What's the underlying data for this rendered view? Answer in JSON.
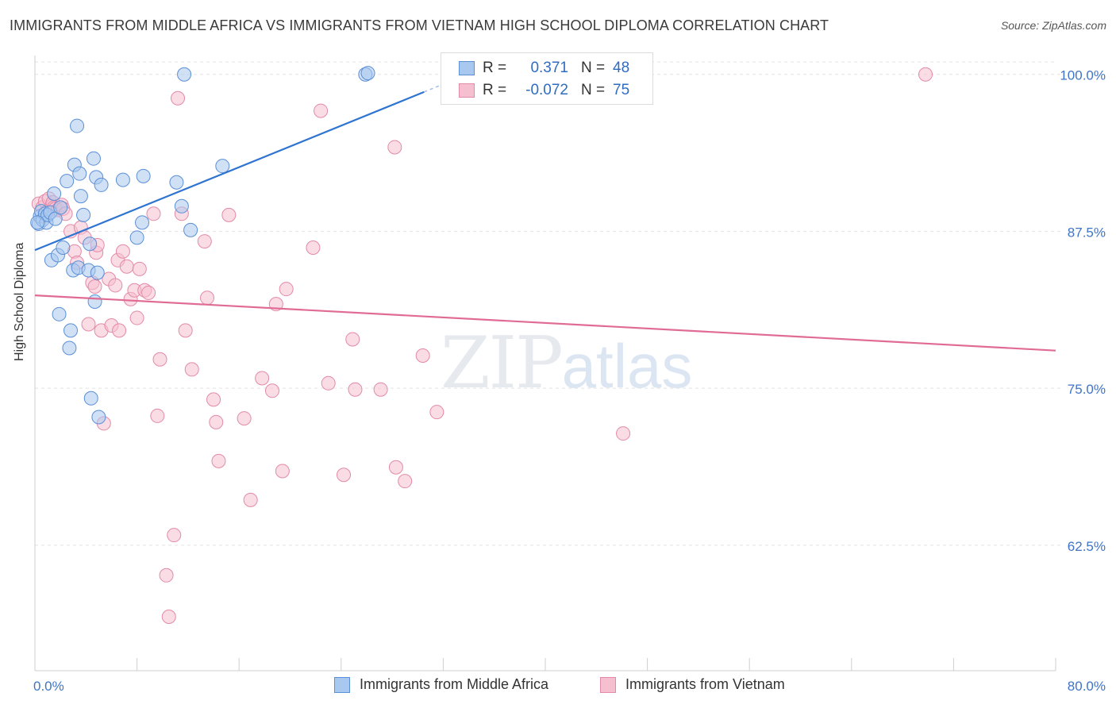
{
  "title": "IMMIGRANTS FROM MIDDLE AFRICA VS IMMIGRANTS FROM VIETNAM HIGH SCHOOL DIPLOMA CORRELATION CHART",
  "source": "Source: ZipAtlas.com",
  "watermark": {
    "zip": "ZIP",
    "atlas": "atlas"
  },
  "legend": {
    "rows": [
      {
        "r_label": "R =",
        "r_value": "0.371",
        "n_label": "N =",
        "n_value": "48"
      },
      {
        "r_label": "R =",
        "r_value": "-0.072",
        "n_label": "N =",
        "n_value": "75"
      }
    ]
  },
  "bottom_legend": [
    "Immigrants from Middle Africa",
    "Immigrants from Vietnam"
  ],
  "colors": {
    "blue_fill": "#a9c8ef",
    "blue_stroke": "#5b8fd6",
    "blue_line": "#2f74d0",
    "pink_fill": "#f6bfd0",
    "pink_stroke": "#e38aa8",
    "pink_line": "#e06b95",
    "tick_label": "#3f74c6",
    "grid": "#e3e3e3"
  },
  "chart_data": {
    "type": "scatter",
    "title": "IMMIGRANTS FROM MIDDLE AFRICA VS IMMIGRANTS FROM VIETNAM HIGH SCHOOL DIPLOMA CORRELATION CHART",
    "xlabel": "",
    "ylabel": "High School Diploma",
    "xlim": [
      0,
      80
    ],
    "ylim": [
      52.5,
      101.5
    ],
    "x_tick_labels": [
      "0.0%",
      "80.0%"
    ],
    "y_ticks": [
      62.5,
      75.0,
      87.5,
      100.0
    ],
    "y_tick_labels": [
      "62.5%",
      "75.0%",
      "87.5%",
      "100.0%"
    ],
    "grid": true,
    "series": [
      {
        "name": "Immigrants from Middle Africa",
        "points": [
          [
            0.3,
            88.1
          ],
          [
            0.4,
            88.7
          ],
          [
            0.5,
            89.1
          ],
          [
            0.6,
            88.4
          ],
          [
            0.8,
            88.9
          ],
          [
            0.9,
            88.2
          ],
          [
            1.0,
            88.8
          ],
          [
            1.2,
            89.0
          ],
          [
            1.3,
            85.2
          ],
          [
            1.5,
            90.5
          ],
          [
            1.6,
            88.5
          ],
          [
            1.8,
            85.6
          ],
          [
            1.9,
            80.9
          ],
          [
            2.0,
            89.4
          ],
          [
            2.2,
            86.2
          ],
          [
            2.5,
            91.5
          ],
          [
            2.7,
            78.2
          ],
          [
            2.8,
            79.6
          ],
          [
            3.0,
            84.4
          ],
          [
            3.1,
            92.8
          ],
          [
            3.3,
            95.9
          ],
          [
            3.4,
            84.6
          ],
          [
            3.5,
            92.1
          ],
          [
            3.6,
            90.3
          ],
          [
            3.8,
            88.8
          ],
          [
            4.2,
            84.4
          ],
          [
            4.3,
            86.5
          ],
          [
            4.4,
            74.2
          ],
          [
            4.6,
            93.3
          ],
          [
            4.7,
            81.9
          ],
          [
            4.8,
            91.8
          ],
          [
            4.9,
            84.2
          ],
          [
            5.0,
            72.7
          ],
          [
            5.2,
            91.2
          ],
          [
            6.9,
            91.6
          ],
          [
            8.0,
            87.0
          ],
          [
            8.4,
            88.2
          ],
          [
            8.5,
            91.9
          ],
          [
            11.1,
            91.4
          ],
          [
            11.5,
            89.5
          ],
          [
            11.7,
            100.0
          ],
          [
            12.2,
            87.6
          ],
          [
            14.7,
            92.7
          ],
          [
            25.9,
            100.0
          ],
          [
            26.1,
            100.1
          ],
          [
            33.0,
            100.1
          ],
          [
            44.2,
            100.0
          ],
          [
            0.2,
            88.2
          ]
        ]
      },
      {
        "name": "Immigrants from Vietnam",
        "points": [
          [
            0.3,
            89.7
          ],
          [
            0.6,
            89.4
          ],
          [
            0.8,
            89.9
          ],
          [
            1.0,
            89.1
          ],
          [
            1.1,
            90.1
          ],
          [
            1.3,
            89.5
          ],
          [
            1.4,
            89.8
          ],
          [
            1.5,
            89.4
          ],
          [
            1.6,
            89.3
          ],
          [
            1.8,
            89.2
          ],
          [
            2.1,
            89.6
          ],
          [
            2.2,
            89.3
          ],
          [
            2.4,
            88.9
          ],
          [
            2.8,
            87.5
          ],
          [
            3.1,
            85.9
          ],
          [
            3.3,
            85.0
          ],
          [
            3.6,
            87.8
          ],
          [
            3.9,
            87.0
          ],
          [
            4.2,
            80.1
          ],
          [
            4.5,
            83.4
          ],
          [
            4.7,
            83.1
          ],
          [
            4.8,
            85.8
          ],
          [
            4.9,
            86.4
          ],
          [
            5.2,
            79.6
          ],
          [
            5.4,
            72.2
          ],
          [
            5.8,
            83.7
          ],
          [
            6.0,
            80.0
          ],
          [
            6.3,
            83.2
          ],
          [
            6.5,
            85.2
          ],
          [
            6.6,
            79.6
          ],
          [
            6.9,
            85.9
          ],
          [
            7.2,
            84.7
          ],
          [
            7.5,
            82.1
          ],
          [
            7.8,
            82.8
          ],
          [
            8.0,
            80.6
          ],
          [
            8.2,
            84.5
          ],
          [
            8.6,
            82.8
          ],
          [
            8.9,
            82.6
          ],
          [
            9.3,
            88.9
          ],
          [
            9.6,
            72.8
          ],
          [
            9.8,
            77.3
          ],
          [
            10.3,
            60.1
          ],
          [
            10.5,
            56.8
          ],
          [
            10.9,
            63.3
          ],
          [
            11.2,
            98.1
          ],
          [
            11.5,
            88.9
          ],
          [
            11.8,
            79.6
          ],
          [
            12.3,
            76.5
          ],
          [
            13.3,
            86.7
          ],
          [
            13.5,
            82.2
          ],
          [
            14.0,
            74.1
          ],
          [
            14.2,
            72.3
          ],
          [
            14.4,
            69.2
          ],
          [
            15.2,
            88.8
          ],
          [
            16.4,
            72.6
          ],
          [
            16.9,
            66.1
          ],
          [
            17.8,
            75.8
          ],
          [
            18.6,
            74.8
          ],
          [
            18.9,
            81.7
          ],
          [
            19.4,
            68.4
          ],
          [
            19.7,
            82.9
          ],
          [
            21.8,
            86.2
          ],
          [
            22.4,
            97.1
          ],
          [
            23.0,
            75.4
          ],
          [
            24.2,
            68.1
          ],
          [
            24.9,
            78.9
          ],
          [
            25.1,
            74.9
          ],
          [
            27.1,
            74.9
          ],
          [
            28.2,
            94.2
          ],
          [
            28.3,
            68.7
          ],
          [
            29.0,
            67.6
          ],
          [
            30.4,
            77.6
          ],
          [
            31.5,
            73.1
          ],
          [
            46.1,
            71.4
          ],
          [
            69.8,
            100.0
          ]
        ]
      }
    ],
    "trendlines": [
      {
        "series": "Immigrants from Middle Africa",
        "x": [
          0,
          30.5
        ],
        "y": [
          86.0,
          98.6
        ],
        "dashed_extension_to_x": 33.0
      },
      {
        "series": "Immigrants from Vietnam",
        "x": [
          0,
          80
        ],
        "y": [
          82.4,
          78.0
        ]
      }
    ]
  }
}
